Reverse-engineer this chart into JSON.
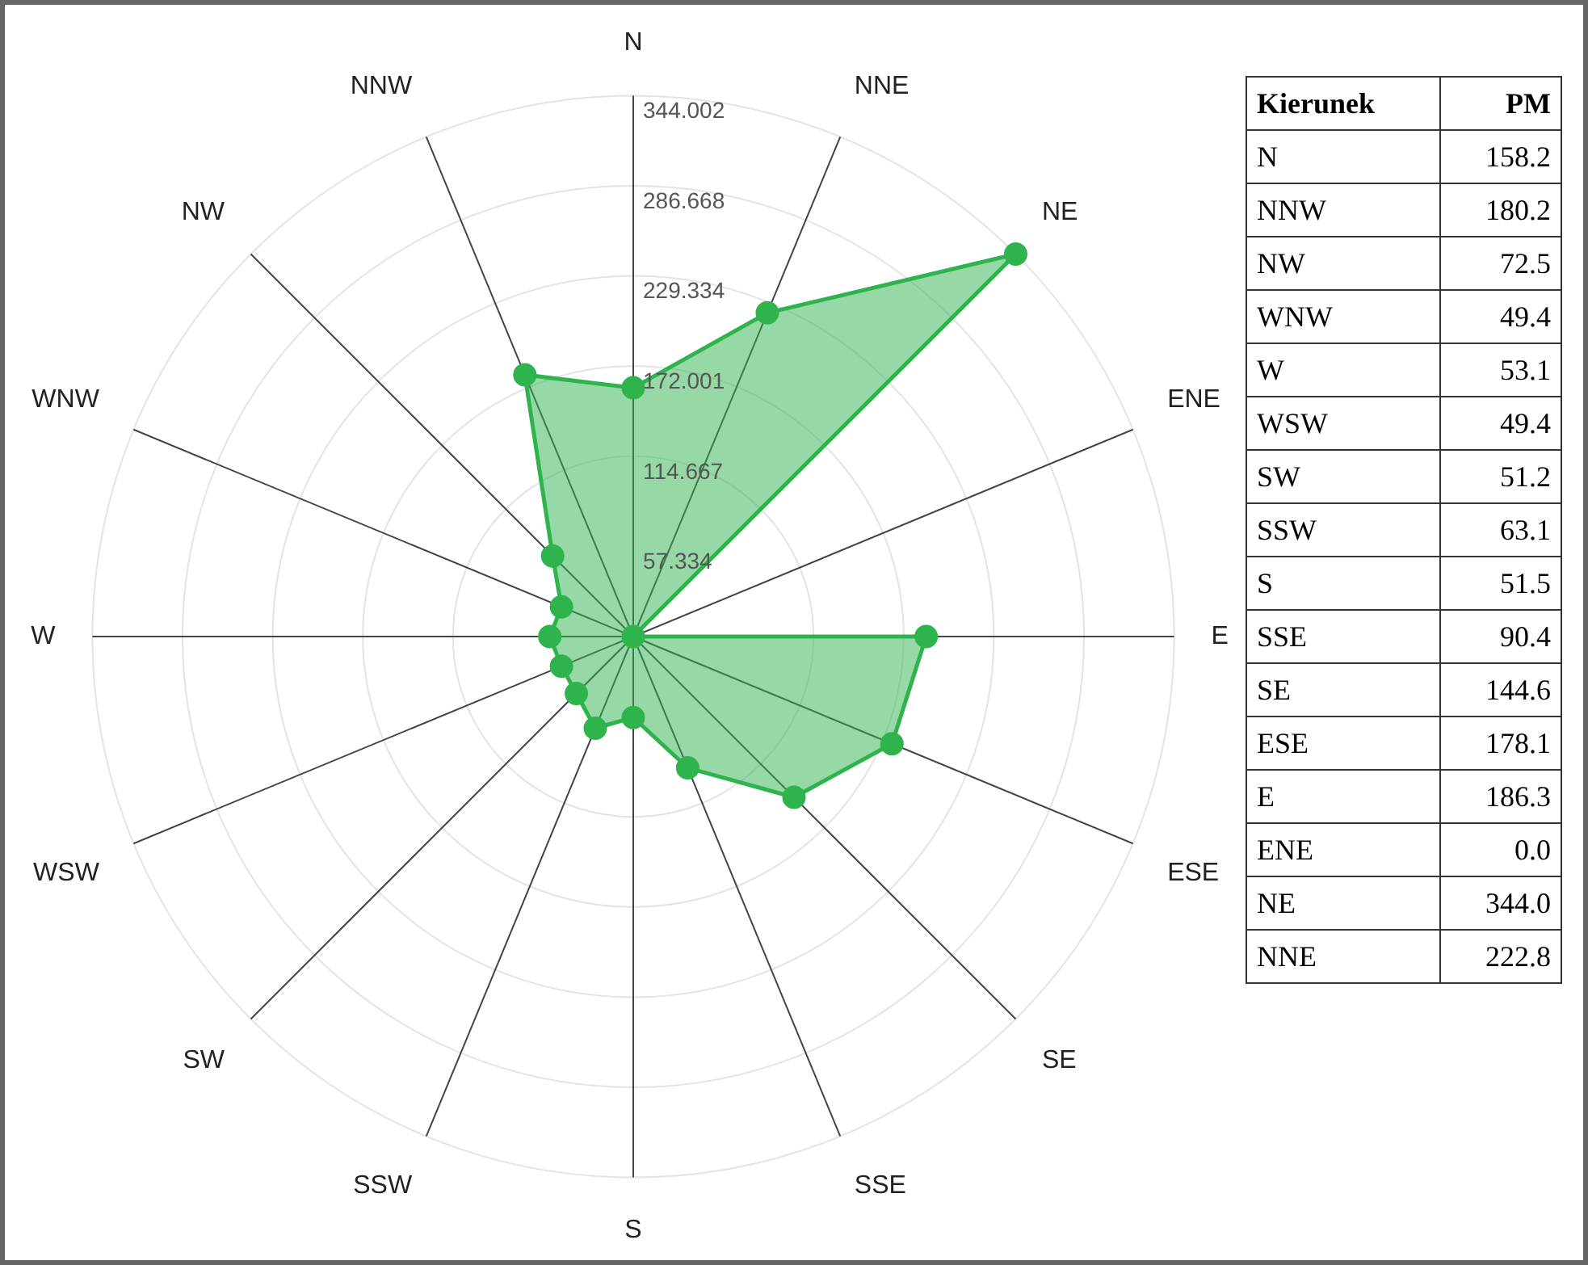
{
  "chart_data": {
    "type": "radar",
    "xlabel": "Kierunek",
    "ylabel": "PM",
    "categories": [
      "N",
      "NNE",
      "NE",
      "ENE",
      "E",
      "ESE",
      "SE",
      "SSE",
      "S",
      "SSW",
      "SW",
      "WSW",
      "W",
      "WNW",
      "NW",
      "NNW"
    ],
    "series": [
      {
        "color": "#2eb34d",
        "values": [
          158.2,
          222.8,
          344.0,
          0.0,
          186.3,
          178.1,
          144.6,
          90.4,
          51.5,
          63.1,
          51.2,
          49.4,
          53.1,
          49.4,
          72.5,
          180.2
        ]
      }
    ],
    "value_labels": [
      "158.2",
      "222.8",
      "344.0",
      "0.0",
      "186.3",
      "178.1",
      "144.6",
      "90.4",
      "51.5",
      "63.1",
      "51.2",
      "49.4",
      "53.1",
      "49.4",
      "72.5",
      "180.2"
    ],
    "ylim": [
      0,
      344.002
    ],
    "yticks": [
      57.334,
      114.667,
      172.001,
      229.334,
      286.668,
      344.002
    ],
    "grid": true,
    "legend": false,
    "marker": "circle"
  }
}
